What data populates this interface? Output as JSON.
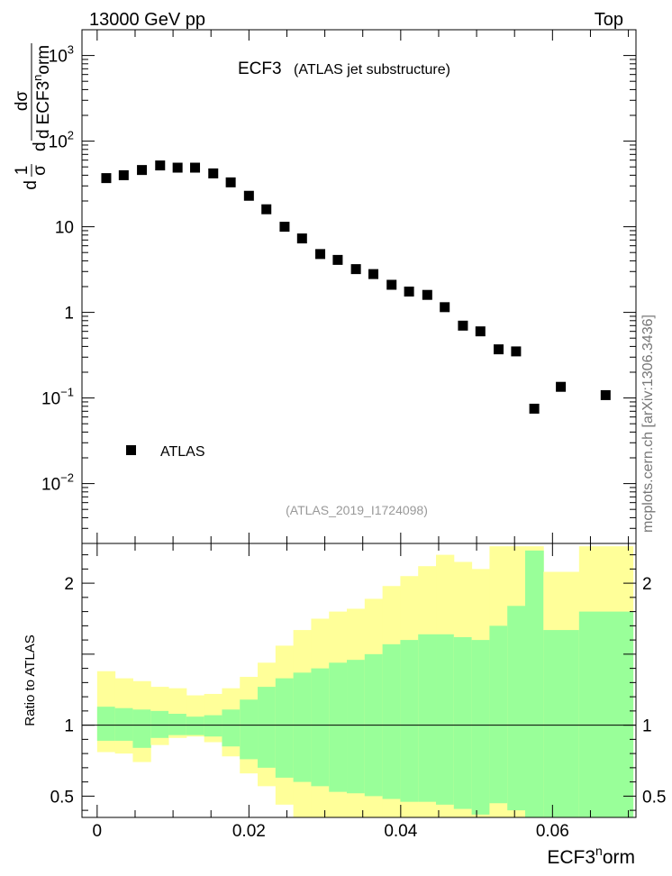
{
  "header": {
    "left": "13000 GeV pp",
    "right": "Top"
  },
  "side_label": "mcplots.cern.ch [arXiv:1306.3436]",
  "chart_data": [
    {
      "type": "scatter",
      "title": "ECF3",
      "subtitle": "(ATLAS jet substructure)",
      "analysis_tag": "(ATLAS_2019_I1724098)",
      "ylabel_parts": {
        "d1": "d",
        "one": "1",
        "sigma": "σ",
        "dsigma": "dσ",
        "d2": "d",
        "ecf": "ECF3",
        "sup": "n",
        "orm": "orm"
      },
      "xlim": [
        -0.002,
        0.071
      ],
      "ylim": [
        0.002,
        2000
      ],
      "yscale": "log",
      "yticks": [
        {
          "v": 1000,
          "base": "10",
          "exp": "3"
        },
        {
          "v": 100,
          "base": "10",
          "exp": "2"
        },
        {
          "v": 10,
          "base": "10",
          "exp": ""
        },
        {
          "v": 1,
          "base": "1",
          "exp": ""
        },
        {
          "v": 0.1,
          "base": "10",
          "exp": "−1"
        },
        {
          "v": 0.01,
          "base": "10",
          "exp": "−2"
        }
      ],
      "legend": {
        "label": "ATLAS",
        "position": "lower-left"
      },
      "series": [
        {
          "name": "ATLAS",
          "marker": "square",
          "color": "#000000",
          "x": [
            0.0012,
            0.0035,
            0.0059,
            0.0083,
            0.0106,
            0.0129,
            0.0153,
            0.0176,
            0.02,
            0.0223,
            0.0247,
            0.027,
            0.0294,
            0.0317,
            0.0341,
            0.0364,
            0.0388,
            0.0411,
            0.0435,
            0.0458,
            0.0482,
            0.0505,
            0.0529,
            0.0552,
            0.0576,
            0.0611,
            0.067
          ],
          "y": [
            37,
            40,
            46,
            52,
            49,
            49,
            42,
            33,
            23,
            16,
            10,
            7.3,
            4.8,
            4.1,
            3.2,
            2.8,
            2.1,
            1.75,
            1.6,
            1.15,
            0.7,
            0.6,
            0.37,
            0.35,
            0.075,
            0.135,
            0.108
          ]
        }
      ]
    },
    {
      "type": "area",
      "ylabel": "Ratio to ATLAS",
      "xlabel_base": "ECF3",
      "xlabel_sup": "n",
      "xlabel_tail": "orm",
      "xlim": [
        -0.002,
        0.071
      ],
      "ylim": [
        0.35,
        2.28
      ],
      "xticks": [
        {
          "v": 0,
          "label": "0"
        },
        {
          "v": 0.02,
          "label": "0.02"
        },
        {
          "v": 0.04,
          "label": "0.04"
        },
        {
          "v": 0.06,
          "label": "0.06"
        }
      ],
      "yticks": [
        {
          "v": 0.5,
          "label": "0.5"
        },
        {
          "v": 1,
          "label": "1"
        },
        {
          "v": 2,
          "label": "2"
        }
      ],
      "reference_line": 1,
      "bands": {
        "colors": {
          "outer": "#ffff99",
          "inner": "#99ff99"
        },
        "edges": [
          0.0,
          0.00235,
          0.0047,
          0.00705,
          0.0094,
          0.01175,
          0.0141,
          0.01645,
          0.0188,
          0.02115,
          0.0235,
          0.02585,
          0.0282,
          0.03055,
          0.0329,
          0.03525,
          0.0376,
          0.03995,
          0.0423,
          0.04465,
          0.047,
          0.04935,
          0.0517,
          0.05405,
          0.0564,
          0.0588,
          0.0635,
          0.0706
        ],
        "outer_hi": [
          1.38,
          1.33,
          1.31,
          1.27,
          1.26,
          1.21,
          1.22,
          1.26,
          1.34,
          1.44,
          1.56,
          1.67,
          1.75,
          1.8,
          1.82,
          1.89,
          1.98,
          2.05,
          2.12,
          2.2,
          2.15,
          2.1,
          2.26,
          2.26,
          2.26,
          2.08,
          2.26
        ],
        "inner_hi": [
          1.13,
          1.12,
          1.11,
          1.1,
          1.08,
          1.06,
          1.07,
          1.11,
          1.18,
          1.27,
          1.33,
          1.37,
          1.4,
          1.44,
          1.46,
          1.5,
          1.57,
          1.6,
          1.64,
          1.64,
          1.62,
          1.6,
          1.7,
          1.84,
          2.23,
          1.67,
          1.8
        ],
        "inner_lo": [
          0.89,
          0.89,
          0.84,
          0.91,
          0.93,
          0.93,
          0.92,
          0.85,
          0.76,
          0.7,
          0.63,
          0.6,
          0.57,
          0.53,
          0.52,
          0.5,
          0.48,
          0.46,
          0.46,
          0.44,
          0.41,
          0.37,
          0.45,
          0.4,
          0.35,
          0.35,
          0.35
        ],
        "outer_lo": [
          0.81,
          0.8,
          0.74,
          0.86,
          0.91,
          0.92,
          0.88,
          0.78,
          0.66,
          0.57,
          0.44,
          0.35,
          0.35,
          0.35,
          0.35,
          0.35,
          0.35,
          0.35,
          0.35,
          0.35,
          0.35,
          0.35,
          0.35,
          0.35,
          0.35,
          0.35,
          0.35
        ]
      }
    }
  ]
}
